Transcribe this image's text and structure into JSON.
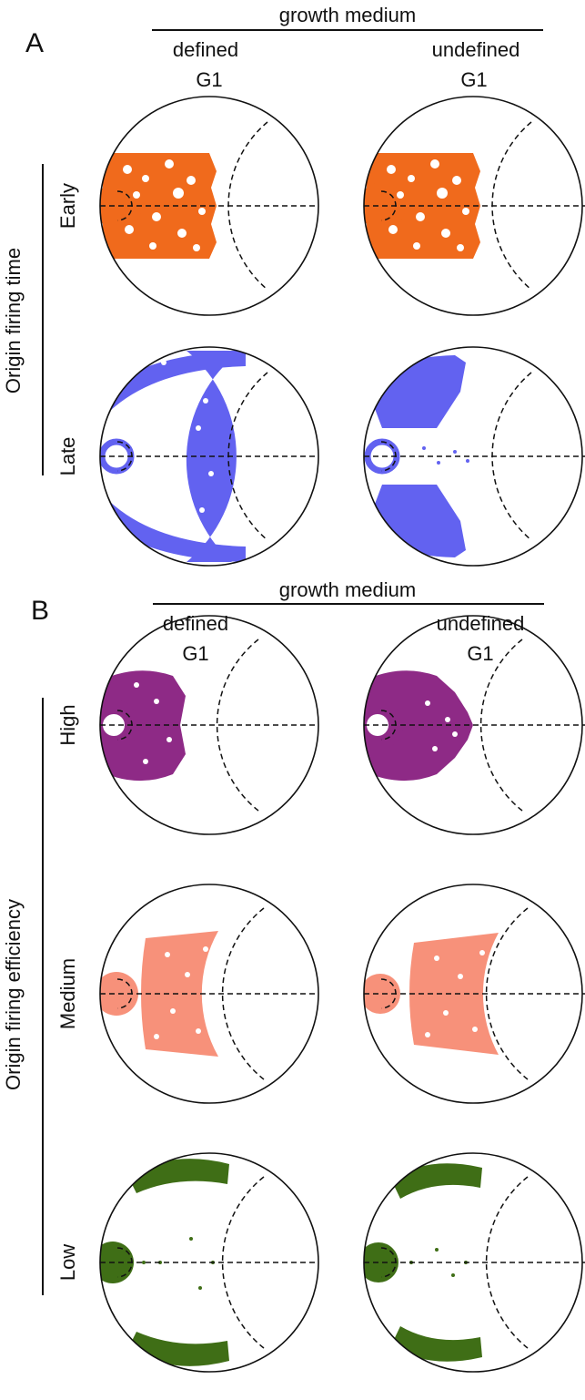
{
  "panel_a": {
    "letter": "A",
    "header": "growth medium",
    "columns": [
      {
        "name": "defined",
        "phase": "G1"
      },
      {
        "name": "undefined",
        "phase": "G1"
      }
    ],
    "axis_title": "Origin firing time",
    "rows": [
      {
        "label": "Early",
        "color": "#f06a1c"
      },
      {
        "label": "Late",
        "color": "#6262f0"
      }
    ]
  },
  "panel_b": {
    "letter": "B",
    "header": "growth medium",
    "columns": [
      {
        "name": "defined",
        "phase": "G1"
      },
      {
        "name": "undefined",
        "phase": "G1"
      }
    ],
    "axis_title": "Origin firing efficiency",
    "rows": [
      {
        "label": "High",
        "color": "#8e2a86"
      },
      {
        "label": "Medium",
        "color": "#f7917a"
      },
      {
        "label": "Low",
        "color": "#3f6e16"
      }
    ]
  }
}
